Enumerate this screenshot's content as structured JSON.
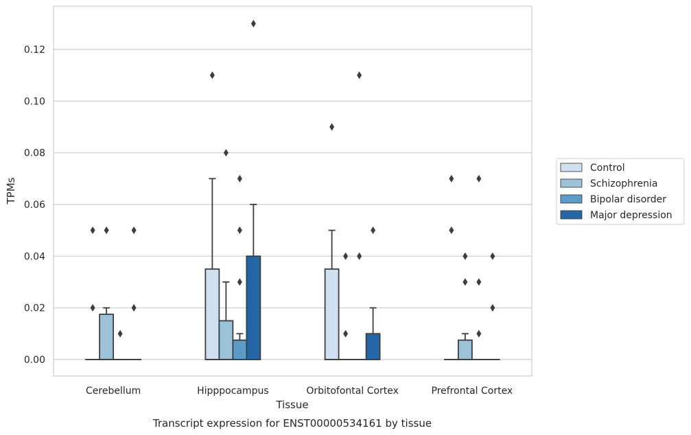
{
  "chart_data": {
    "type": "box",
    "title": "",
    "caption": "Transcript expression for ENST00000534161 by tissue",
    "xlabel": "Tissue",
    "ylabel": "TPMs",
    "ylim": [
      -0.0065,
      0.137
    ],
    "yticks": [
      "0.00",
      "0.02",
      "0.04",
      "0.06",
      "0.08",
      "0.10",
      "0.12"
    ],
    "grid": true,
    "legend_position": "right",
    "categories": [
      "Cerebellum",
      "Hipppocampus",
      "Orbitofontal Cortex",
      "Prefrontal Cortex"
    ],
    "series": [
      {
        "name": "Control",
        "color": "#d1e0f0",
        "boxes": [
          {
            "q1": 0,
            "median": 0,
            "q3": 0,
            "whisker_low": 0,
            "whisker_high": 0,
            "outliers": [
              0.02,
              0.05
            ]
          },
          {
            "q1": 0,
            "median": 0,
            "q3": 0.035,
            "whisker_low": 0,
            "whisker_high": 0.07,
            "outliers": [
              0.11
            ]
          },
          {
            "q1": 0,
            "median": 0,
            "q3": 0.035,
            "whisker_low": 0,
            "whisker_high": 0.05,
            "outliers": [
              0.09
            ]
          },
          {
            "q1": 0,
            "median": 0,
            "q3": 0,
            "whisker_low": 0,
            "whisker_high": 0,
            "outliers": [
              0.05,
              0.07
            ]
          }
        ]
      },
      {
        "name": "Schizophrenia",
        "color": "#9cc2da",
        "boxes": [
          {
            "q1": 0,
            "median": 0,
            "q3": 0.0175,
            "whisker_low": 0,
            "whisker_high": 0.02,
            "outliers": [
              0.05
            ]
          },
          {
            "q1": 0,
            "median": 0,
            "q3": 0.015,
            "whisker_low": 0,
            "whisker_high": 0.03,
            "outliers": [
              0.08
            ]
          },
          {
            "q1": 0,
            "median": 0,
            "q3": 0,
            "whisker_low": 0,
            "whisker_high": 0,
            "outliers": [
              0.01,
              0.04
            ]
          },
          {
            "q1": 0,
            "median": 0,
            "q3": 0.0075,
            "whisker_low": 0,
            "whisker_high": 0.01,
            "outliers": [
              0.03,
              0.04
            ]
          }
        ]
      },
      {
        "name": "Bipolar disorder",
        "color": "#5a9bc8",
        "boxes": [
          {
            "q1": 0,
            "median": 0,
            "q3": 0,
            "whisker_low": 0,
            "whisker_high": 0,
            "outliers": [
              0.01
            ]
          },
          {
            "q1": 0,
            "median": 0,
            "q3": 0.0075,
            "whisker_low": 0,
            "whisker_high": 0.01,
            "outliers": [
              0.03,
              0.05,
              0.07
            ]
          },
          {
            "q1": 0,
            "median": 0,
            "q3": 0,
            "whisker_low": 0,
            "whisker_high": 0,
            "outliers": [
              0.04,
              0.11
            ]
          },
          {
            "q1": 0,
            "median": 0,
            "q3": 0,
            "whisker_low": 0,
            "whisker_high": 0,
            "outliers": [
              0.01,
              0.03,
              0.07
            ]
          }
        ]
      },
      {
        "name": "Major depression",
        "color": "#2466a6",
        "boxes": [
          {
            "q1": 0,
            "median": 0,
            "q3": 0,
            "whisker_low": 0,
            "whisker_high": 0,
            "outliers": [
              0.02,
              0.05
            ]
          },
          {
            "q1": 0,
            "median": 0,
            "q3": 0.04,
            "whisker_low": 0,
            "whisker_high": 0.06,
            "outliers": [
              0.13
            ]
          },
          {
            "q1": 0,
            "median": 0,
            "q3": 0.01,
            "whisker_low": 0,
            "whisker_high": 0.02,
            "outliers": [
              0.05
            ]
          },
          {
            "q1": 0,
            "median": 0,
            "q3": 0,
            "whisker_low": 0,
            "whisker_high": 0,
            "outliers": [
              0.02,
              0.04
            ]
          }
        ]
      }
    ]
  }
}
